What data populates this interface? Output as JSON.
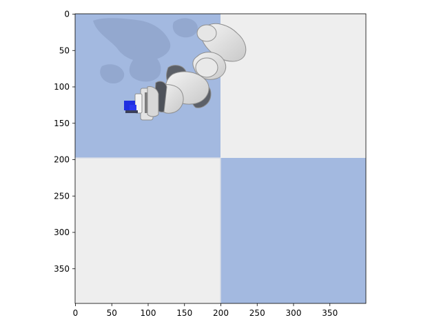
{
  "image_view": {
    "x_ticks": [
      "0",
      "50",
      "100",
      "150",
      "200",
      "250",
      "300",
      "350"
    ],
    "y_ticks": [
      "0",
      "50",
      "100",
      "150",
      "200",
      "250",
      "300",
      "350"
    ],
    "scene": {
      "floor_colors": {
        "blue": "#a3b9e0",
        "light": "#eeeeee",
        "shadow": "#93a8cf"
      },
      "objects": [
        "robot-arm",
        "gripper",
        "blue-cube"
      ],
      "cube_color": "#1f2ee0"
    }
  }
}
